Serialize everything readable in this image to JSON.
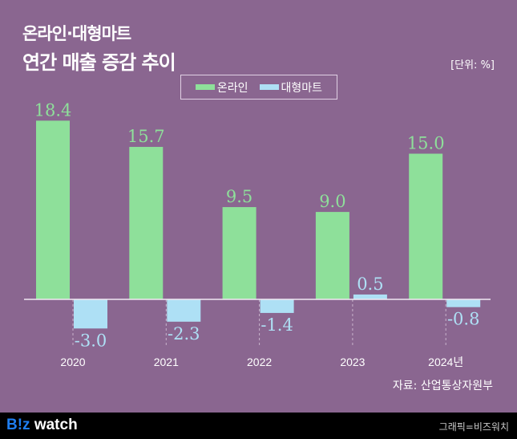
{
  "title_line1": "온라인·대형마트",
  "title_line2": "연간 매출 증감 추이",
  "unit": "[단위: %]",
  "source": "자료: 산업통상자원부",
  "footer": {
    "logo_prefix": "B!z",
    "logo_suffix": " watch",
    "credit": "그래픽=비즈워치"
  },
  "colors": {
    "background": "#8a6690",
    "online": "#8ee09a",
    "mart": "#aee0f5",
    "logo_accent": "#1f7ef0"
  },
  "chart_data": {
    "type": "bar",
    "categories": [
      "2020",
      "2021",
      "2022",
      "2023",
      "2024년"
    ],
    "series": [
      {
        "name": "온라인",
        "values": [
          18.4,
          15.7,
          9.5,
          9.0,
          15.0
        ],
        "labels": [
          "18.4",
          "15.7",
          "9.5",
          "9.0",
          "15.0"
        ]
      },
      {
        "name": "대형마트",
        "values": [
          -3.0,
          -2.3,
          -1.4,
          0.5,
          -0.8
        ],
        "labels": [
          "-3.0",
          "-2.3",
          "-1.4",
          "0.5",
          "-0.8"
        ]
      }
    ],
    "legend": "top-center",
    "grid": false
  }
}
